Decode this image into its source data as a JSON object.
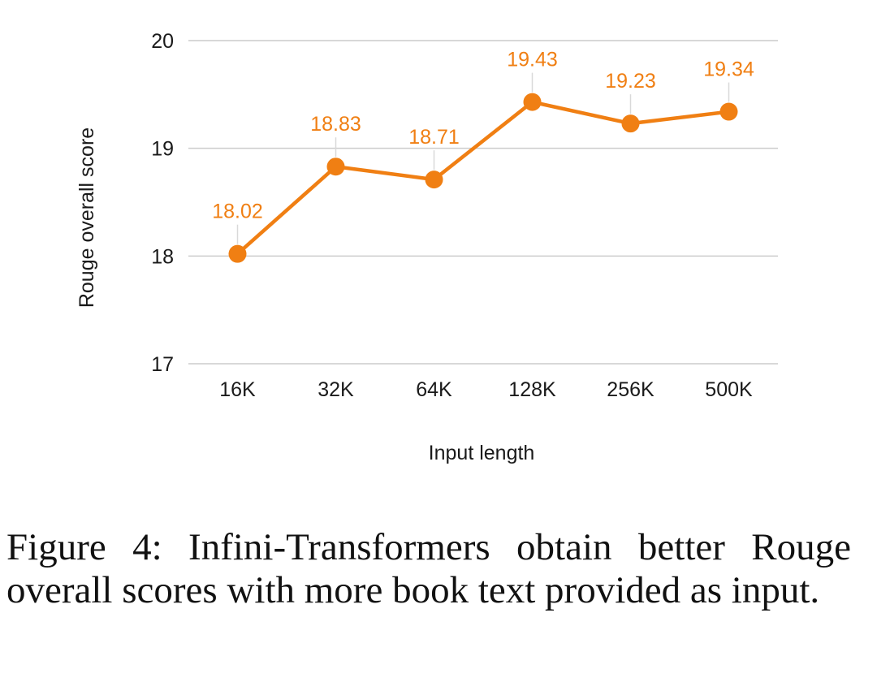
{
  "chart_data": {
    "type": "line",
    "title": "",
    "xlabel": "Input length",
    "ylabel": "Rouge overall score",
    "categories": [
      "16K",
      "32K",
      "64K",
      "128K",
      "256K",
      "500K"
    ],
    "series": [
      {
        "values": [
          18.02,
          18.83,
          18.71,
          19.43,
          19.23,
          19.34
        ],
        "labels": [
          "18.02",
          "18.83",
          "18.71",
          "19.43",
          "19.23",
          "19.34"
        ],
        "color": "#f07f13"
      }
    ],
    "ylim": [
      17,
      20
    ],
    "yticks": [
      "17",
      "18",
      "19",
      "20"
    ],
    "grid": true,
    "legend": "none"
  },
  "caption": {
    "text": "Figure 4: Infini-Transformers obtain better Rouge overall scores with more book text provided as input."
  },
  "colors": {
    "line": "#f07f13",
    "grid": "#cccccc",
    "text": "#1a1a1a"
  }
}
